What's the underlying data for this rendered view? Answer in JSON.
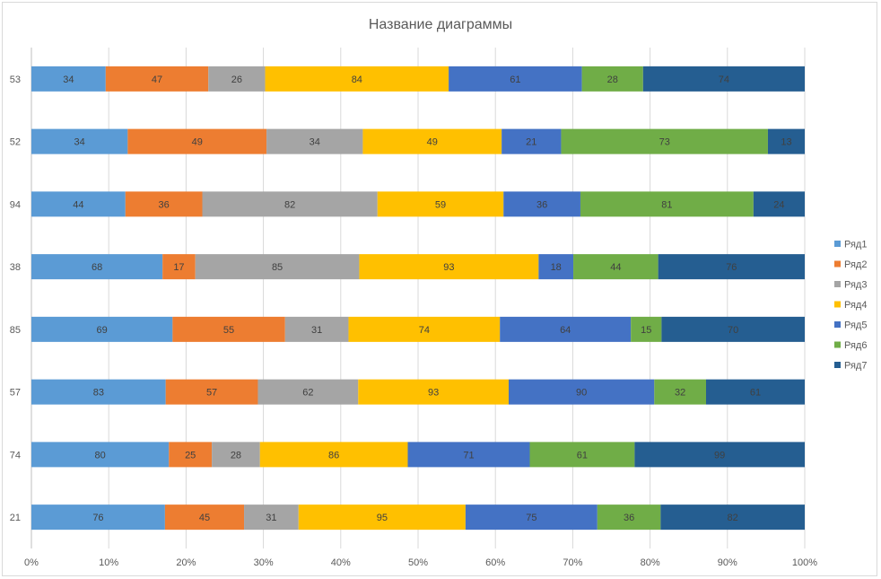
{
  "chart_data": {
    "type": "bar",
    "orientation": "horizontal",
    "stacking": "percent",
    "title": "Название диаграммы",
    "categories": [
      "21",
      "74",
      "57",
      "85",
      "38",
      "94",
      "52",
      "53"
    ],
    "series": [
      {
        "name": "Ряд1",
        "color": "#5B9BD5",
        "values": [
          76,
          80,
          83,
          69,
          68,
          44,
          34,
          34
        ]
      },
      {
        "name": "Ряд2",
        "color": "#ED7D31",
        "values": [
          45,
          25,
          57,
          55,
          17,
          36,
          49,
          47
        ]
      },
      {
        "name": "Ряд3",
        "color": "#A5A5A5",
        "values": [
          31,
          28,
          62,
          31,
          85,
          82,
          34,
          26
        ]
      },
      {
        "name": "Ряд4",
        "color": "#FFC000",
        "values": [
          95,
          86,
          93,
          74,
          93,
          59,
          49,
          84
        ]
      },
      {
        "name": "Ряд5",
        "color": "#4472C4",
        "values": [
          75,
          71,
          90,
          64,
          18,
          36,
          21,
          61
        ]
      },
      {
        "name": "Ряд6",
        "color": "#70AD47",
        "values": [
          36,
          61,
          32,
          15,
          44,
          81,
          73,
          28
        ]
      },
      {
        "name": "Ряд7",
        "color": "#255E91",
        "values": [
          82,
          99,
          61,
          70,
          76,
          24,
          13,
          74
        ]
      }
    ],
    "x_ticks": [
      "0%",
      "10%",
      "20%",
      "30%",
      "40%",
      "50%",
      "60%",
      "70%",
      "80%",
      "90%",
      "100%"
    ],
    "xlim": [
      0,
      100
    ],
    "grid": true,
    "legend_position": "right"
  }
}
